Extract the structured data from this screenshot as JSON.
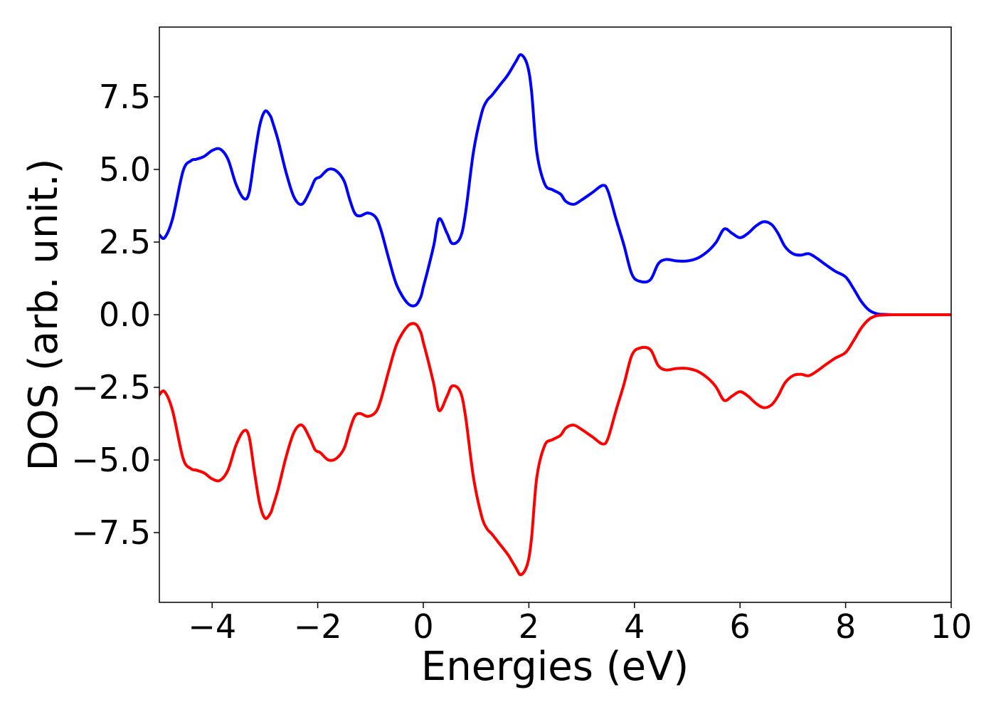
{
  "chart_data": {
    "type": "line",
    "title": "",
    "xlabel": "Energies (eV)",
    "ylabel": "DOS (arb. unit.)",
    "xlim": [
      -5,
      10
    ],
    "ylim": [
      -9.9,
      9.9
    ],
    "grid": false,
    "legend": "none",
    "x_ticks": [
      {
        "value": -4,
        "label": "−4"
      },
      {
        "value": -2,
        "label": "−2"
      },
      {
        "value": 0,
        "label": "0"
      },
      {
        "value": 2,
        "label": "2"
      },
      {
        "value": 4,
        "label": "4"
      },
      {
        "value": 6,
        "label": "6"
      },
      {
        "value": 8,
        "label": "8"
      },
      {
        "value": 10,
        "label": "10"
      }
    ],
    "y_ticks": [
      {
        "value": 7.5,
        "label": "7.5"
      },
      {
        "value": 5.0,
        "label": "5.0"
      },
      {
        "value": 2.5,
        "label": "2.5"
      },
      {
        "value": 0.0,
        "label": "0.0"
      },
      {
        "value": -2.5,
        "label": "−2.5"
      },
      {
        "value": -5.0,
        "label": "−5.0"
      },
      {
        "value": -7.5,
        "label": "−7.5"
      }
    ],
    "x": [
      -5.0,
      -4.9,
      -4.75,
      -4.55,
      -4.4,
      -4.3,
      -4.15,
      -4.0,
      -3.85,
      -3.7,
      -3.55,
      -3.4,
      -3.3,
      -3.2,
      -3.1,
      -3.0,
      -2.9,
      -2.85,
      -2.75,
      -2.6,
      -2.45,
      -2.3,
      -2.15,
      -2.05,
      -1.95,
      -1.8,
      -1.65,
      -1.5,
      -1.4,
      -1.3,
      -1.2,
      -1.05,
      -0.9,
      -0.8,
      -0.65,
      -0.5,
      -0.3,
      -0.15,
      -0.05,
      0.0,
      0.08,
      0.2,
      0.3,
      0.45,
      0.55,
      0.7,
      0.8,
      0.95,
      1.1,
      1.2,
      1.3,
      1.45,
      1.6,
      1.75,
      1.85,
      1.97,
      2.05,
      2.15,
      2.3,
      2.45,
      2.6,
      2.7,
      2.85,
      3.0,
      3.2,
      3.4,
      3.5,
      3.65,
      3.8,
      3.95,
      4.1,
      4.3,
      4.45,
      4.6,
      4.8,
      5.0,
      5.2,
      5.4,
      5.55,
      5.7,
      5.85,
      6.0,
      6.15,
      6.3,
      6.45,
      6.6,
      6.72,
      6.85,
      7.0,
      7.15,
      7.3,
      7.45,
      7.6,
      7.8,
      8.0,
      8.15,
      8.3,
      8.45,
      8.6,
      8.75,
      8.9,
      9.1,
      9.4,
      9.7,
      10.0
    ],
    "series": [
      {
        "color": "#0000ff",
        "values": [
          2.75,
          2.65,
          3.3,
          4.95,
          5.3,
          5.35,
          5.45,
          5.65,
          5.7,
          5.35,
          4.5,
          4.0,
          4.2,
          5.4,
          6.5,
          7.0,
          6.85,
          6.6,
          6.0,
          4.9,
          4.05,
          3.8,
          4.25,
          4.65,
          4.75,
          5.0,
          4.95,
          4.6,
          4.0,
          3.5,
          3.4,
          3.5,
          3.35,
          2.9,
          1.9,
          1.0,
          0.4,
          0.32,
          0.6,
          0.95,
          1.5,
          2.4,
          3.3,
          2.8,
          2.45,
          2.65,
          3.5,
          5.6,
          6.9,
          7.35,
          7.55,
          7.9,
          8.25,
          8.7,
          8.95,
          8.6,
          7.7,
          5.6,
          4.5,
          4.3,
          4.15,
          3.9,
          3.8,
          3.95,
          4.2,
          4.45,
          4.25,
          3.3,
          2.4,
          1.4,
          1.15,
          1.2,
          1.75,
          1.9,
          1.85,
          1.85,
          1.95,
          2.2,
          2.5,
          2.95,
          2.8,
          2.65,
          2.8,
          3.05,
          3.2,
          3.1,
          2.8,
          2.35,
          2.1,
          2.05,
          2.1,
          1.95,
          1.75,
          1.5,
          1.3,
          0.9,
          0.45,
          0.15,
          0.03,
          0.01,
          0.0,
          0.0,
          0.0,
          0.0,
          0.0
        ]
      },
      {
        "color": "#ff0000",
        "values": [
          -2.75,
          -2.65,
          -3.3,
          -4.95,
          -5.3,
          -5.35,
          -5.45,
          -5.65,
          -5.7,
          -5.35,
          -4.5,
          -4.0,
          -4.2,
          -5.4,
          -6.5,
          -7.0,
          -6.85,
          -6.6,
          -6.0,
          -4.9,
          -4.05,
          -3.8,
          -4.25,
          -4.65,
          -4.75,
          -5.0,
          -4.95,
          -4.6,
          -4.0,
          -3.5,
          -3.4,
          -3.5,
          -3.35,
          -2.9,
          -1.9,
          -1.0,
          -0.4,
          -0.32,
          -0.6,
          -0.95,
          -1.5,
          -2.4,
          -3.3,
          -2.8,
          -2.45,
          -2.65,
          -3.5,
          -5.6,
          -6.9,
          -7.35,
          -7.55,
          -7.9,
          -8.25,
          -8.7,
          -8.95,
          -8.6,
          -7.7,
          -5.6,
          -4.5,
          -4.3,
          -4.15,
          -3.9,
          -3.8,
          -3.95,
          -4.2,
          -4.45,
          -4.25,
          -3.3,
          -2.4,
          -1.4,
          -1.15,
          -1.2,
          -1.75,
          -1.9,
          -1.85,
          -1.85,
          -1.95,
          -2.2,
          -2.5,
          -2.95,
          -2.8,
          -2.65,
          -2.8,
          -3.05,
          -3.2,
          -3.1,
          -2.8,
          -2.35,
          -2.1,
          -2.05,
          -2.1,
          -1.95,
          -1.75,
          -1.5,
          -1.3,
          -0.9,
          -0.45,
          -0.15,
          -0.03,
          -0.01,
          0.0,
          0.0,
          0.0,
          0.0,
          0.0
        ]
      }
    ]
  }
}
